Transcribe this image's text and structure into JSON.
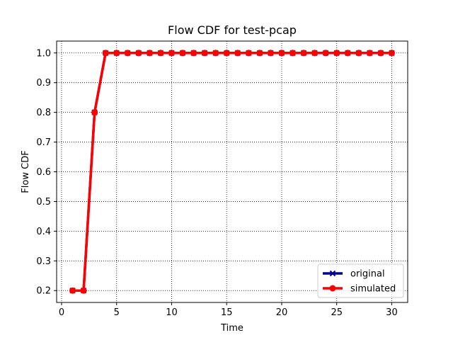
{
  "chart_data": {
    "type": "line",
    "title": "Flow CDF for test-pcap",
    "xlabel": "Time",
    "ylabel": "Flow CDF",
    "xlim": [
      -0.45,
      31.45
    ],
    "ylim": [
      0.16,
      1.04
    ],
    "xticks": [
      0,
      5,
      10,
      15,
      20,
      25,
      30
    ],
    "yticks": [
      0.2,
      0.3,
      0.4,
      0.5,
      0.6,
      0.7,
      0.8,
      0.9,
      1.0
    ],
    "ytick_labels": [
      "0.2",
      "0.3",
      "0.4",
      "0.5",
      "0.6",
      "0.7",
      "0.8",
      "0.9",
      "1.0"
    ],
    "grid": true,
    "legend_position": "lower-right",
    "series": [
      {
        "name": "original",
        "color": "#00008b",
        "marker": "x",
        "x": [
          1,
          2,
          3,
          4,
          5,
          6,
          7,
          8,
          9,
          10,
          11,
          12,
          13,
          14,
          15,
          16,
          17,
          18,
          19,
          20,
          21,
          22,
          23,
          24,
          25,
          26,
          27,
          28,
          29,
          30
        ],
        "y": [
          0.2,
          0.2,
          0.8,
          1,
          1,
          1,
          1,
          1,
          1,
          1,
          1,
          1,
          1,
          1,
          1,
          1,
          1,
          1,
          1,
          1,
          1,
          1,
          1,
          1,
          1,
          1,
          1,
          1,
          1,
          1
        ]
      },
      {
        "name": "simulated",
        "color": "#ff0000",
        "marker": "o",
        "x": [
          1,
          2,
          3,
          4,
          5,
          6,
          7,
          8,
          9,
          10,
          11,
          12,
          13,
          14,
          15,
          16,
          17,
          18,
          19,
          20,
          21,
          22,
          23,
          24,
          25,
          26,
          27,
          28,
          29,
          30
        ],
        "y": [
          0.2,
          0.2,
          0.8,
          1,
          1,
          1,
          1,
          1,
          1,
          1,
          1,
          1,
          1,
          1,
          1,
          1,
          1,
          1,
          1,
          1,
          1,
          1,
          1,
          1,
          1,
          1,
          1,
          1,
          1,
          1
        ]
      }
    ]
  }
}
